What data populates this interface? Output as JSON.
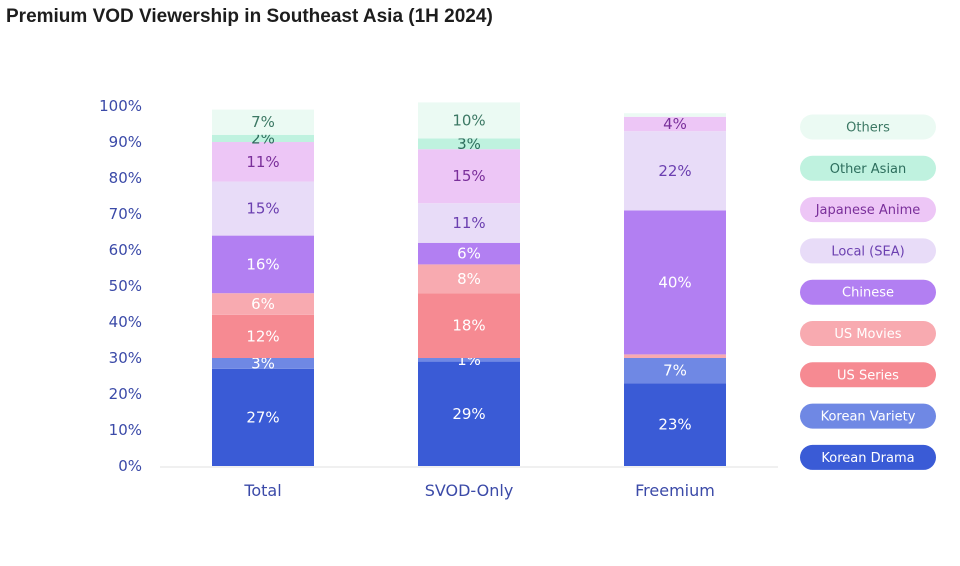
{
  "title": "Premium VOD Viewership in Southeast Asia (1H 2024)",
  "chart_data": {
    "type": "bar",
    "stacked": true,
    "title": "Premium VOD Viewership in Southeast Asia (1H 2024)",
    "xlabel": "",
    "ylabel": "",
    "ylim": [
      0,
      100
    ],
    "yticks": [
      "0%",
      "10%",
      "20%",
      "30%",
      "40%",
      "50%",
      "60%",
      "70%",
      "80%",
      "90%",
      "100%"
    ],
    "categories": [
      "Total",
      "SVOD-Only",
      "Freemium"
    ],
    "legend_position": "right",
    "grid": false,
    "series": [
      {
        "name": "Korean Drama",
        "color": "#3a5bd6",
        "text_color": "#ffffff",
        "values": [
          27,
          29,
          23
        ],
        "labels": [
          "27%",
          "29%",
          "23%"
        ]
      },
      {
        "name": "Korean Variety",
        "color": "#6f88e4",
        "text_color": "#ffffff",
        "values": [
          3,
          1,
          7
        ],
        "labels": [
          "3%",
          "1%",
          "7%"
        ]
      },
      {
        "name": "US Series",
        "color": "#f68a92",
        "text_color": "#ffffff",
        "values": [
          12,
          18,
          0
        ],
        "labels": [
          "12%",
          "18%",
          ""
        ]
      },
      {
        "name": "US Movies",
        "color": "#f8aab0",
        "text_color": "#ffffff",
        "values": [
          6,
          8,
          1
        ],
        "labels": [
          "6%",
          "8%",
          ""
        ]
      },
      {
        "name": "Chinese",
        "color": "#b27ff2",
        "text_color": "#ffffff",
        "values": [
          16,
          6,
          40
        ],
        "labels": [
          "16%",
          "6%",
          "40%"
        ]
      },
      {
        "name": "Local (SEA)",
        "color": "#e8dcf8",
        "text_color": "#6b3fb0",
        "values": [
          15,
          11,
          22
        ],
        "labels": [
          "15%",
          "11%",
          "22%"
        ]
      },
      {
        "name": "Japanese Anime",
        "color": "#edc6f6",
        "text_color": "#7a2f9a",
        "values": [
          11,
          15,
          4
        ],
        "labels": [
          "11%",
          "15%",
          "4%"
        ]
      },
      {
        "name": "Other Asian",
        "color": "#bff2df",
        "text_color": "#2d6e5d",
        "values": [
          2,
          3,
          0
        ],
        "labels": [
          "2%",
          "3%",
          ""
        ]
      },
      {
        "name": "Others",
        "color": "#ebfaf3",
        "text_color": "#3c7864",
        "values": [
          7,
          10,
          1
        ],
        "labels": [
          "7%",
          "10%",
          ""
        ]
      }
    ]
  }
}
